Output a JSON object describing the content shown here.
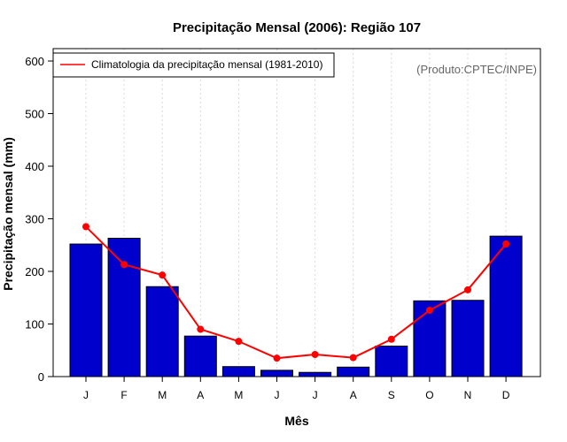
{
  "chart_data": {
    "type": "bar",
    "title": "Precipitação Mensal (2006): Região 107",
    "xlabel": "Mês",
    "ylabel": "Precipitação mensal (mm)",
    "ylim": [
      0,
      600
    ],
    "yticks": [
      0,
      100,
      200,
      300,
      400,
      500,
      600
    ],
    "categories": [
      "J",
      "F",
      "M",
      "A",
      "M",
      "J",
      "J",
      "A",
      "S",
      "O",
      "N",
      "D"
    ],
    "series": [
      {
        "name": "Precipitação mensal 2006",
        "type": "bar",
        "color": "#0000cc",
        "values": [
          252,
          263,
          171,
          77,
          19,
          12,
          8,
          18,
          58,
          144,
          145,
          267
        ]
      },
      {
        "name": "Climatologia da precipitação mensal (1981-2010)",
        "type": "line",
        "color": "#ff0000",
        "values": [
          285,
          213,
          193,
          90,
          67,
          35,
          42,
          36,
          71,
          126,
          165,
          252
        ]
      }
    ],
    "legend": {
      "position": "top-left",
      "entries": [
        "Climatologia da precipitação mensal (1981-2010)"
      ]
    },
    "annotation": "(Produto:CPTEC/INPE)",
    "grid": "vertical dotted"
  }
}
